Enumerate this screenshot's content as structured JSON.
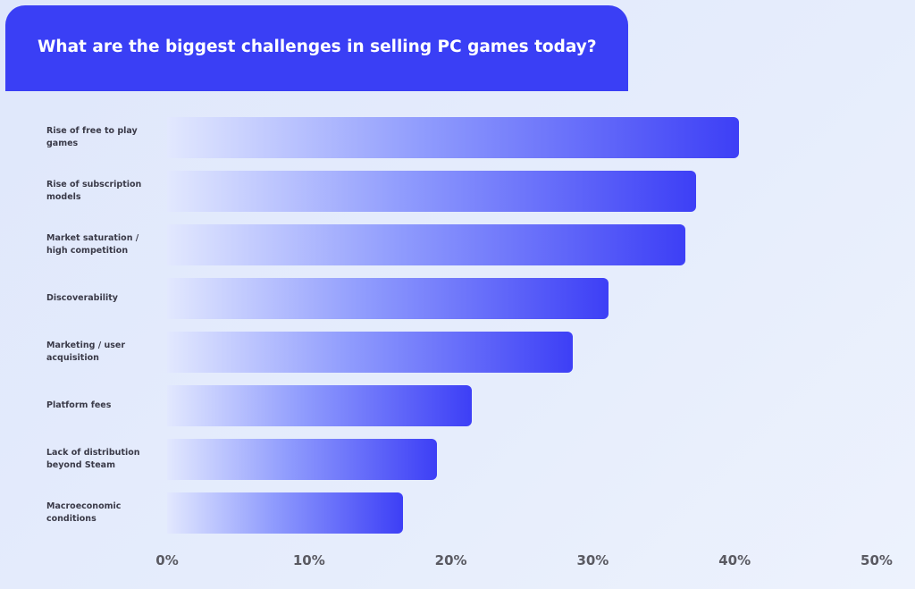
{
  "chart_data": {
    "type": "bar",
    "orientation": "horizontal",
    "title": "What are the biggest challenges in selling PC games today?",
    "categories": [
      "Rise of free to play games",
      "Rise of subscription models",
      "Market saturation / high competition",
      "Discoverability",
      "Marketing / user acquisition",
      "Platform fees",
      "Lack of distribution beyond Steam",
      "Macroeconomic conditions"
    ],
    "values": [
      40.3,
      37.3,
      36.5,
      31.1,
      28.6,
      21.5,
      19.0,
      16.6
    ],
    "color": "#3d3ff6",
    "xlim": [
      0,
      50
    ],
    "xticks": [
      {
        "value": 0,
        "label": "0%"
      },
      {
        "value": 10,
        "label": "10%"
      },
      {
        "value": 20,
        "label": "20%"
      },
      {
        "value": 30,
        "label": "30%"
      },
      {
        "value": 40,
        "label": "40%"
      },
      {
        "value": 50,
        "label": "50%"
      }
    ]
  }
}
